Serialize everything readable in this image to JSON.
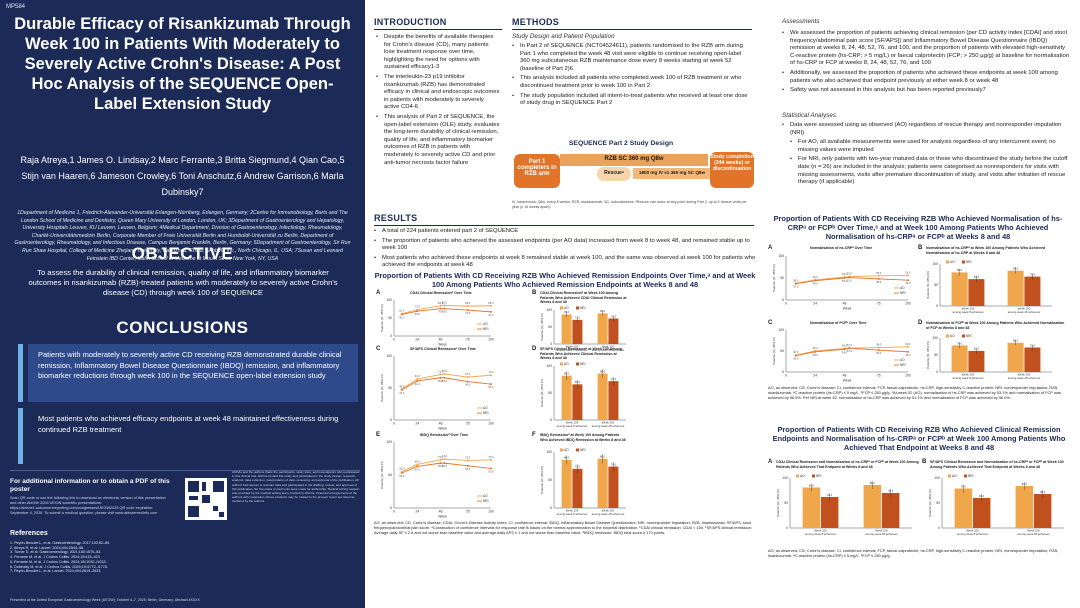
{
  "poster_id": "MP584",
  "title": "Durable Efficacy of Risankizumab Through Week 100 in Patients With Moderately to Severely Active Crohn's Disease: A Post Hoc Analysis of the SEQUENCE Open-Label Extension Study",
  "authors": "Raja Atreya,1 James O. Lindsay,2 Marc Ferrante,3 Britta Siegmund,4 Qian Cao,5 Stijn van Haaren,6 Jameson Crowley,6 Toni Anschutz,6 Andrew Garrison,6 Marla Dubinsky7",
  "affiliations": "1Department of Medicine 1, Friedrich-Alexander-Universität Erlangen-Nürnberg, Erlangen, Germany; 2Centre for Immunobiology, Barts and The London School of Medicine and Dentistry, Queen Mary University of London, London, UK; 3Department of Gastroenterology and Hepatology, University Hospitals Leuven, KU Leuven, Leuven, Belgium; 4Medical Department, Division of Gastroenterology, Infectiology, Rheumatology, Charité-Universitätsmedizin Berlin, Corporate Member of Freie Universität Berlin and Humboldt-Universität zu Berlin, Department of Gastroenterology, Rheumatology, and Infectious Disease, Campus Benjamin Franklin, Berlin, Germany; 5Department of Gastroenterology, Sir Run Run Shaw Hospital, College of Medicine Zhejiang University, Hangzhou, China; 6AbbVie Inc., North Chicago, IL, USA; 7Susan and Leonard Feinstein IBD Center, Icahn School of Medicine at Mount Sinai, New York, NY, USA",
  "objective": {
    "heading": "OBJECTIVE",
    "text": "To assess the durability of clinical remission, quality of life, and inflammatory biomarker outcomes in risankizumab (RZB)-treated patients with moderately to severely active Crohn's disease (CD) through week 100 of SEQUENCE"
  },
  "conclusions": {
    "heading": "CONCLUSIONS",
    "c1": "Patients with moderately to severely active CD receiving RZB demonstrated durable clinical remission, Inflammatory Bowel Disease Questionnaire (IBDQ) remission, and inflammatory biomarker reductions through week 100 in the SEQUENCE open-label extension study",
    "c2": "Most patients who achieved efficacy endpoints at week 48 maintained effectiveness during continued RZB treatment"
  },
  "more_info": {
    "title": "For additional information or to obtain a PDF of this poster",
    "body": "Scan QR code or use the following link to download an electronic version of this presentation and other AbbVie 2025 UEGW scientific presentations: https://abbvie1.outcomerxreporting.com/congresses/UEGW2025 QR code expiration: September 4, 2026. To submit a medical question, please visit www.abbviemedinfo.com"
  },
  "acknowledgements": "AbbVie and the authors thank the participants, study sites, and investigators who participated in this clinical trial. AbbVie funded this study and participated in the study design, research, analysis, data collection, interpretation of data, reviewing, and approval of the publication. All authors had access to relevant data and participated in the drafting, review, and approval of this publication. No honoraria or payments were made for authorship. Medical writing support was provided by the medical writing team, funded by AbbVie. Financial arrangements of the authors with companies whose products may be related to the present report are listed as declared by the authors.",
  "references": {
    "heading": "References",
    "items": [
      "1. Peyrin-Biroulet L, et al. Gastroenterology. 2017;152:62–80.",
      "2. Atreya R, et al. Lancet. 2024;404:2544–56.",
      "3. Turner D, et al. Gastroenterology. 2021;160:1570–83.",
      "4. Ferrante M, et al. J Crohns Colitis. 2024;18:415–423.",
      "5. Ferrante M, et al. J Crohns Colitis. 2024;18:i1032–i1033.",
      "6. Dubinsky M, et al. J Crohns Colitis. 2025;19:i1772–i1778.",
      "7. Peyrin-Biroulet L, et al. Lancet. 2024;404:2619–2633."
    ]
  },
  "presented": "Presented at the United European Gastroenterology Week (UEGW); October 4–7, 2025; Berlin, Germany; Abstract #XXXX",
  "intro": {
    "heading": "INTRODUCTION",
    "b1": "Despite the benefits of available therapies for Crohn's disease (CD), many patients lose treatment response over time, highlighting the need for options with sustained efficacy1-3",
    "b2": "The interleukin-23 p19 inhibitor risankizumab (RZB) has demonstrated efficacy in clinical and endoscopic outcomes in patients with moderately to severely active CD4-6",
    "b3": "This analysis of Part 2 of SEQUENCE, the open-label extension (OLE) study, evaluates the long-term durability of clinical remission, quality of life, and inflammatory biomarker outcomes of RZB in patients with moderately to severely active CD and prior anti-tumor necrosis factor failure"
  },
  "methods": {
    "heading": "METHODS",
    "sub1": "Study Design and Patient Population",
    "b1": "In Part 2 of SEQUENCE (NCT04524611), patients randomised to the RZB arm during Part 1 who completed the week 48 visit were eligible to continue receiving open-label 360 mg subcutaneous RZB maintenance dose every 8 weeks starting at week 52 (baseline of Part 2)6",
    "b2": "This analysis included all patients who completed week 100 of RZB treatment or who discontinued treatment prior to week 100 in Part 2",
    "b3": "The study population included all intent-to-treat patients who received at least one dose of study drug in SEQUENCE Part 2",
    "design_title": "SEQUENCE Part 2 Study Design",
    "design_left": "Part 1 completers in RZB arm",
    "design_mid": "RZB SC 360 mg Q8w",
    "design_rescue": "Rescueᵃ",
    "design_rescue_arm": "1800 mg IV x1   360 mg SC Q8w",
    "design_right": "Study completion (244 weeks) or discontinuation",
    "design_note": "IV, intravenous; Q8w, every 8 weeks; RZB, risankizumab; SC, subcutaneous. ᵃRescue can occur at any point during Part 2, up to 2 rescue visits per year (≥ 16 weeks apart).",
    "sub2": "Assessments",
    "a1": "We assessed the proportion of patients achieving clinical remission (per CD activity index [CDAI] and stool frequency/abdominal pain score [SF/APS]) and Inflammatory Bowel Disease Questionnaire (IBDQ) remission at weeks 8, 24, 48, 52, 76, and 100, and the proportion of patients with elevated high-sensitivity C-reactive protein (hs-CRP; > 5 mg/L) or faecal calprotectin (FCP; > 250 µg/g) at baseline for normalisation of hs-CRP or FCP at weeks 8, 24, 48, 52, 76, and 100",
    "a2": "Additionally, we assessed the proportion of patients who achieved these endpoints at week 100 among patients who also achieved that endpoint previously at either week 8 or week 48",
    "a3": "Safety was not assessed in this analysis but has been reported previously7",
    "sub3": "Statistical Analyses",
    "s1": "Data were assessed using as observed (AO) regardless of rescue therapy and nonresponder imputation (NRI)",
    "s2": "For AO, all available measurements were used for analysis regardless of any intercurrent event; no missing values were imputed",
    "s3": "For NRI, only patients with two-year matured data or those who discontinued the study before the cutoff date (n = 26) are included in the analysis; patients were categorised as nonresponders for visits with missing assessments, visits after premature discontinuation of study, and visits after initiation of rescue therapy (if applicable)"
  },
  "results": {
    "heading": "RESULTS",
    "b1": "A total of 224 patients entered part 2 of SEQUENCE",
    "b2": "The proportion of patients who achieved the assessed endpoints (per AO data) increased from week 8 to week 48, and remained stable up to week 100",
    "b3": "Most patients who achieved these endpoints at week 8 remained stable at week 100, and the same was observed at week 100 for patients who achieved the endpoints at week 48"
  },
  "fig1": {
    "title": "Proportion of Patients With CD Receiving RZB Who Achieved Remission Endpoints Over Time,ᵃ and at Week 100 Among Patients Who Achieved Remission Endpoints at Weeks 8 and 48",
    "A_title": "CDAI Clinical Remissionᵇ Over Time",
    "B_title": "CDAI Clinical Remissionᵇ at Week 100 Among Patients Who Achieved CDAI Clinical Remission at Weeks 8 and 48",
    "C_title": "SF/APS Clinical Remissionᶜ Over Time",
    "D_title": "SF/APS Clinical Remissionᶜ at Week 100 Among Patients Who Achieved Clinical Remission at Weeks 8 and 48",
    "E_title": "IBDQ Remissionᵈ Over Time",
    "F_title": "IBDQ Remissionᵈ at Week 100 Among Patients Who Achieved IBDQ Remission at Weeks 8 and 48",
    "footnote": "AO, as observed; CD, Crohn's disease; CDAI, Crohn's Disease Activity Index; CI, confidence interval; IBDQ, Inflammatory Bowel Disease Questionnaire; NRI, nonresponder imputation; RZB, risankizumab; SF/APS, stool frequency/abdominal pain score. ᵃConstruction of confidence intervals for response rate is based on the normal approximation to the binomial distribution. ᵇCDAI clinical remission: CDAI < 150. ᶜSF/APS clinical remission: Average daily SF ≤ 2.8 and not worse than baseline value and average daily APS ≤ 1 and not worse than baseline value. ᵈIBDQ remission: IBDQ total score ≥ 170 points."
  },
  "fig2": {
    "title": "Proportion of Patients With CD Receiving RZB Who Achieved Normalisation of hs-CRPᵃ or FCPᵇ Over Time,ᶜ and at Week 100 Among Patients Who Achieved Normalisation of hs-CRPᵃ or FCPᵇ at Weeks 8 and 48",
    "A_title": "Normalisation of hs-CRPᵃ Over Time",
    "B_title": "Normalisation of hs-CRPᵃ at Week 100 Among Patients Who Achieved Normalisation of hs-CRP at Weeks 8 and 48",
    "C_title": "Normalisation of FCPᵇ Over Time",
    "D_title": "Normalisation of FCPᵇ at Week 100 Among Patients Who Achieved Normalisation of FCP at Weeks 8 and 48",
    "footnote": "AO, as observed; CD, Crohn's disease; CI, confidence interval; FCP, faecal calprotectin; hs-CRP, high-sensitivity C-reactive protein; NRI, nonresponder imputation; RZB, risankizumab. ᵃC-reactive protein (hs-CRP) ≤ 5 mg/L. ᵇFCP ≤ 250 µg/g. ᶜAt week 52 (AO), normalisation of hs-CRP was achieved by 53.1% and normalisation of FCP was achieved by 56.9%. Per NRI at week 52, normalisation of hs-CRP was achieved by 51.1% and normalisation of FCP was achieved by 56.6%."
  },
  "fig3": {
    "title": "Proportion of Patients With CD Receiving RZB Who Achieved Clinical Remission Endpoints and Normalisation of hs-CRPᵃ or FCPᵇ at Week 100 Among Patients Who Achieved That Endpoint at Weeks 8 and 48",
    "A_title": "CDAI Clinical Remission and Normalisation of hs-CRPᵃ or FCPᵇ at Week 100 Among Patients Who Achieved That Endpoint at Weeks 8 and 48",
    "B_title": "SF/APS Clinical Remission and Normalisation of hs-CRPᵃ or FCPᵇ at Week 100 Among Patients Who Achieved That Endpoint at Weeks 8 and 48",
    "footnote": "AO, as observed; CD, Crohn's disease; CI, confidence interval; FCP, faecal calprotectin; hs-CRP, high-sensitivity C-reactive protein; NRI, nonresponder imputation; RZB, risankizumab. ᵃC-reactive protein (hs-CRP) ≤ 5 mg/L. ᵇFCP ≤ 250 µg/g."
  },
  "chart_data": [
    {
      "type": "line",
      "id": "fig1A",
      "xlabel": "Week",
      "ylabel": "Patients (%, 95% CI)",
      "ylim": [
        0,
        100
      ],
      "x": [
        0,
        8,
        24,
        48,
        52,
        76,
        100
      ],
      "series": [
        {
          "name": "AO",
          "values": [
            null,
            62,
            73,
            84,
            85,
            83,
            84
          ]
        },
        {
          "name": "NRI",
          "values": [
            null,
            60,
            69,
            76,
            76,
            72,
            67
          ]
        }
      ],
      "colors": [
        "#f0a64a",
        "#e2742a"
      ]
    },
    {
      "type": "bar",
      "id": "fig1B",
      "ylabel": "Patients (%, 95% CI)",
      "ylim": [
        0,
        100
      ],
      "categories": [
        "Week 100 among week 8 achievers",
        "Week 100 among week 48 achievers"
      ],
      "series": [
        {
          "name": "AO",
          "values": [
            87,
            90
          ]
        },
        {
          "name": "NRI",
          "values": [
            71,
            75
          ]
        }
      ],
      "colors": [
        "#f0a64a",
        "#c0501e"
      ]
    },
    {
      "type": "line",
      "id": "fig1C",
      "xlabel": "Week",
      "ylabel": "Patients (%, 95% CI)",
      "ylim": [
        0,
        100
      ],
      "x": [
        0,
        8,
        24,
        48,
        52,
        76,
        100
      ],
      "series": [
        {
          "name": "AO",
          "values": [
            null,
            48,
            64,
            71,
            72,
            67,
            70
          ]
        },
        {
          "name": "NRI",
          "values": [
            null,
            47,
            61,
            66,
            66,
            60,
            56
          ]
        }
      ],
      "colors": [
        "#f0a64a",
        "#e2742a"
      ]
    },
    {
      "type": "bar",
      "id": "fig1D",
      "ylabel": "Patients (%, 95% CI)",
      "ylim": [
        0,
        100
      ],
      "categories": [
        "Week 100 among week 8 achievers",
        "Week 100 among week 48 achievers"
      ],
      "series": [
        {
          "name": "AO",
          "values": [
            82,
            86
          ]
        },
        {
          "name": "NRI",
          "values": [
            66,
            72
          ]
        }
      ],
      "colors": [
        "#f0a64a",
        "#c0501e"
      ]
    },
    {
      "type": "line",
      "id": "fig1E",
      "xlabel": "Week",
      "ylabel": "Patients (%, 95% CI)",
      "ylim": [
        0,
        100
      ],
      "x": [
        0,
        8,
        24,
        48,
        52,
        76,
        100
      ],
      "series": [
        {
          "name": "AO",
          "values": [
            null,
            55,
            66,
            73,
            74,
            72,
            73
          ]
        },
        {
          "name": "NRI",
          "values": [
            null,
            53,
            63,
            68,
            68,
            64,
            60
          ]
        }
      ],
      "colors": [
        "#f0a64a",
        "#e2742a"
      ]
    },
    {
      "type": "bar",
      "id": "fig1F",
      "ylabel": "Patients (%, 95% CI)",
      "ylim": [
        0,
        100
      ],
      "categories": [
        "Week 100 among week 8 achievers",
        "Week 100 among week 48 achievers"
      ],
      "series": [
        {
          "name": "AO",
          "values": [
            86,
            88
          ]
        },
        {
          "name": "NRI",
          "values": [
            70,
            74
          ]
        }
      ],
      "colors": [
        "#f0a64a",
        "#c0501e"
      ]
    },
    {
      "type": "line",
      "id": "fig2A",
      "xlabel": "Week",
      "ylabel": "Patients (%, 95% CI)",
      "ylim": [
        0,
        100
      ],
      "x": [
        0,
        8,
        24,
        48,
        52,
        76,
        100
      ],
      "series": [
        {
          "name": "AO",
          "values": [
            null,
            38,
            46,
            52,
            53,
            55,
            56
          ]
        },
        {
          "name": "NRI",
          "values": [
            null,
            37,
            44,
            50,
            51,
            48,
            45
          ]
        }
      ],
      "colors": [
        "#f0a64a",
        "#e2742a"
      ]
    },
    {
      "type": "bar",
      "id": "fig2B",
      "ylabel": "Patients (%, 95% CI)",
      "ylim": [
        0,
        100
      ],
      "categories": [
        "Week 100 among week 8 achievers",
        "Week 100 among week 48 achievers"
      ],
      "series": [
        {
          "name": "AO",
          "values": [
            80,
            84
          ]
        },
        {
          "name": "NRI",
          "values": [
            64,
            70
          ]
        }
      ],
      "colors": [
        "#f0a64a",
        "#c0501e"
      ]
    },
    {
      "type": "line",
      "id": "fig2C",
      "xlabel": "Week",
      "ylabel": "Patients (%, 95% CI)",
      "ylim": [
        0,
        100
      ],
      "x": [
        0,
        8,
        24,
        48,
        52,
        76,
        100
      ],
      "series": [
        {
          "name": "AO",
          "values": [
            null,
            40,
            50,
            56,
            57,
            58,
            60
          ]
        },
        {
          "name": "NRI",
          "values": [
            null,
            39,
            48,
            54,
            57,
            52,
            48
          ]
        }
      ],
      "colors": [
        "#f0a64a",
        "#e2742a"
      ]
    },
    {
      "type": "bar",
      "id": "fig2D",
      "ylabel": "Patients (%, 95% CI)",
      "ylim": [
        0,
        100
      ],
      "categories": [
        "Week 100 among week 8 achievers",
        "Week 100 among week 48 achievers"
      ],
      "series": [
        {
          "name": "AO",
          "values": [
            78,
            86
          ]
        },
        {
          "name": "NRI",
          "values": [
            62,
            72
          ]
        }
      ],
      "colors": [
        "#f0a64a",
        "#c0501e"
      ]
    },
    {
      "type": "bar",
      "id": "fig3A",
      "ylabel": "Patients (%, 95% CI)",
      "ylim": [
        0,
        100
      ],
      "categories": [
        "Week 100 among week 8 achievers",
        "Week 100 among week 48 achievers"
      ],
      "series": [
        {
          "name": "AO",
          "values": [
            81,
            86
          ]
        },
        {
          "name": "NRI",
          "values": [
            62,
            70
          ]
        }
      ],
      "colors": [
        "#f0a64a",
        "#c0501e"
      ]
    },
    {
      "type": "bar",
      "id": "fig3B",
      "ylabel": "Patients (%, 95% CI)",
      "ylim": [
        0,
        100
      ],
      "categories": [
        "Week 100 among week 8 achievers",
        "Week 100 among week 48 achievers"
      ],
      "series": [
        {
          "name": "AO",
          "values": [
            79,
            84
          ]
        },
        {
          "name": "NRI",
          "values": [
            60,
            68
          ]
        }
      ],
      "colors": [
        "#f0a64a",
        "#c0501e"
      ]
    }
  ]
}
